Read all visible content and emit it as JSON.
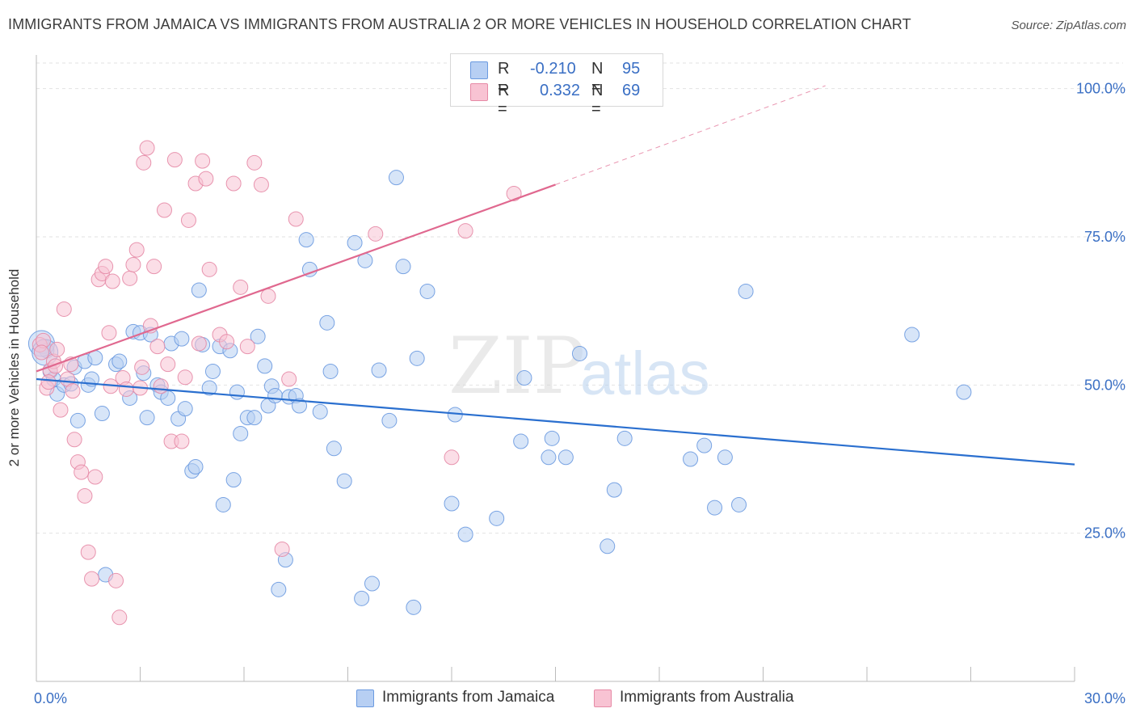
{
  "title": "IMMIGRANTS FROM JAMAICA VS IMMIGRANTS FROM AUSTRALIA 2 OR MORE VEHICLES IN HOUSEHOLD CORRELATION CHART",
  "source": "Source: ZipAtlas.com",
  "watermark": {
    "zip": "ZIP",
    "atlas": "atlas"
  },
  "legend": {
    "series": [
      {
        "r_label": "R =",
        "r_value": "-0.210",
        "n_label": "N =",
        "n_value": "95"
      },
      {
        "r_label": "R =",
        "r_value": "0.332",
        "n_label": "N =",
        "n_value": "69"
      }
    ]
  },
  "colors": {
    "jamaica_fill": "#b7cff3",
    "jamaica_stroke": "#6b9ae0",
    "jamaica_line": "#2a6fcf",
    "australia_fill": "#f8c3d3",
    "australia_stroke": "#e68aa6",
    "australia_line": "#e0688f",
    "tick_label": "#3a6fc4",
    "grid": "#e2e2e2"
  },
  "chart_data": {
    "type": "scatter",
    "title": "IMMIGRANTS FROM JAMAICA VS IMMIGRANTS FROM AUSTRALIA 2 OR MORE VEHICLES IN HOUSEHOLD CORRELATION CHART",
    "xlabel": "",
    "ylabel": "2 or more Vehicles in Household",
    "xlim": [
      0,
      30
    ],
    "ylim": [
      0,
      105
    ],
    "x_tick_labels": [
      "0.0%",
      "30.0%"
    ],
    "y_ticks": [
      25,
      50,
      75,
      100
    ],
    "y_tick_labels": [
      "25.0%",
      "50.0%",
      "75.0%",
      "100.0%"
    ],
    "grid": true,
    "legend_position": "top-center",
    "series": [
      {
        "name": "Immigrants from Jamaica",
        "r": -0.21,
        "n": 95,
        "trend": {
          "x": [
            0,
            30
          ],
          "y": [
            51.0,
            36.6
          ]
        },
        "points": [
          [
            0.2,
            56.5
          ],
          [
            0.3,
            55.8
          ],
          [
            0.4,
            52.3
          ],
          [
            0.5,
            51.0
          ],
          [
            0.6,
            48.5
          ],
          [
            0.8,
            50.0
          ],
          [
            1.1,
            53.0
          ],
          [
            1.2,
            44.0
          ],
          [
            1.4,
            54.0
          ],
          [
            1.5,
            50.0
          ],
          [
            1.6,
            51.0
          ],
          [
            1.7,
            54.6
          ],
          [
            1.9,
            45.2
          ],
          [
            2.0,
            18.0
          ],
          [
            2.3,
            53.5
          ],
          [
            2.4,
            54.0
          ],
          [
            2.7,
            47.8
          ],
          [
            2.8,
            59.0
          ],
          [
            3.0,
            58.8
          ],
          [
            3.1,
            52.0
          ],
          [
            3.2,
            44.5
          ],
          [
            3.3,
            58.5
          ],
          [
            3.5,
            50.0
          ],
          [
            3.6,
            48.8
          ],
          [
            3.8,
            47.8
          ],
          [
            3.9,
            57.0
          ],
          [
            4.1,
            44.3
          ],
          [
            4.2,
            57.8
          ],
          [
            4.3,
            46.0
          ],
          [
            4.5,
            35.5
          ],
          [
            4.6,
            36.2
          ],
          [
            4.7,
            66.0
          ],
          [
            4.8,
            56.8
          ],
          [
            5.0,
            49.5
          ],
          [
            5.1,
            52.3
          ],
          [
            5.3,
            56.5
          ],
          [
            5.4,
            29.8
          ],
          [
            5.6,
            55.8
          ],
          [
            5.7,
            34.0
          ],
          [
            5.8,
            48.8
          ],
          [
            5.9,
            41.8
          ],
          [
            6.1,
            44.5
          ],
          [
            6.3,
            44.5
          ],
          [
            6.4,
            58.2
          ],
          [
            6.6,
            53.2
          ],
          [
            6.7,
            46.5
          ],
          [
            6.8,
            49.8
          ],
          [
            6.9,
            48.2
          ],
          [
            7.0,
            15.5
          ],
          [
            7.2,
            20.5
          ],
          [
            7.3,
            48.0
          ],
          [
            7.5,
            48.2
          ],
          [
            7.6,
            46.5
          ],
          [
            7.8,
            74.5
          ],
          [
            7.9,
            69.5
          ],
          [
            8.2,
            45.5
          ],
          [
            8.4,
            60.5
          ],
          [
            8.5,
            52.3
          ],
          [
            8.6,
            39.3
          ],
          [
            8.9,
            33.8
          ],
          [
            9.2,
            74.0
          ],
          [
            9.4,
            14.0
          ],
          [
            9.5,
            71.0
          ],
          [
            9.7,
            16.5
          ],
          [
            9.9,
            52.5
          ],
          [
            10.2,
            44.0
          ],
          [
            10.4,
            85.0
          ],
          [
            10.6,
            70.0
          ],
          [
            10.9,
            12.5
          ],
          [
            11.0,
            54.5
          ],
          [
            11.3,
            65.8
          ],
          [
            12.0,
            30.0
          ],
          [
            12.1,
            45.0
          ],
          [
            12.4,
            24.8
          ],
          [
            13.3,
            27.5
          ],
          [
            14.0,
            40.5
          ],
          [
            14.1,
            51.2
          ],
          [
            14.8,
            37.8
          ],
          [
            14.9,
            41.0
          ],
          [
            15.3,
            37.8
          ],
          [
            15.7,
            55.3
          ],
          [
            16.5,
            22.8
          ],
          [
            16.7,
            32.3
          ],
          [
            17.0,
            41.0
          ],
          [
            18.9,
            37.5
          ],
          [
            19.3,
            39.8
          ],
          [
            19.6,
            29.3
          ],
          [
            19.9,
            37.8
          ],
          [
            20.3,
            29.8
          ],
          [
            20.5,
            65.8
          ],
          [
            25.3,
            58.5
          ],
          [
            26.8,
            48.8
          ],
          [
            0.15,
            57.0
          ],
          [
            0.25,
            55.5
          ],
          [
            1.0,
            50.2
          ]
        ]
      },
      {
        "name": "Immigrants from Australia",
        "r": 0.332,
        "n": 69,
        "trend": {
          "x": [
            0,
            15
          ],
          "y": [
            52.3,
            83.8
          ]
        },
        "trend_extension": {
          "x": [
            15,
            22.8
          ],
          "y": [
            83.8,
            100.5
          ]
        },
        "points": [
          [
            0.1,
            56.8
          ],
          [
            0.2,
            57.5
          ],
          [
            0.3,
            49.5
          ],
          [
            0.4,
            52.5
          ],
          [
            0.5,
            54.0
          ],
          [
            0.6,
            56.0
          ],
          [
            0.7,
            45.8
          ],
          [
            0.8,
            62.8
          ],
          [
            0.9,
            51.0
          ],
          [
            1.0,
            53.5
          ],
          [
            1.1,
            40.8
          ],
          [
            1.2,
            37.0
          ],
          [
            1.3,
            35.3
          ],
          [
            1.4,
            31.3
          ],
          [
            1.5,
            21.8
          ],
          [
            1.6,
            17.3
          ],
          [
            1.7,
            34.5
          ],
          [
            1.8,
            67.8
          ],
          [
            1.9,
            68.8
          ],
          [
            2.0,
            70.0
          ],
          [
            2.1,
            58.8
          ],
          [
            2.2,
            67.5
          ],
          [
            2.3,
            17.0
          ],
          [
            2.4,
            10.8
          ],
          [
            2.5,
            51.2
          ],
          [
            2.6,
            49.3
          ],
          [
            2.7,
            68.0
          ],
          [
            2.8,
            70.3
          ],
          [
            2.9,
            72.8
          ],
          [
            3.0,
            49.5
          ],
          [
            3.1,
            87.5
          ],
          [
            3.2,
            90.0
          ],
          [
            3.3,
            60.0
          ],
          [
            3.4,
            70.0
          ],
          [
            3.5,
            56.5
          ],
          [
            3.6,
            49.8
          ],
          [
            3.7,
            79.5
          ],
          [
            3.8,
            53.5
          ],
          [
            3.9,
            40.5
          ],
          [
            4.0,
            88.0
          ],
          [
            4.2,
            40.5
          ],
          [
            4.3,
            51.3
          ],
          [
            4.4,
            77.8
          ],
          [
            4.6,
            84.0
          ],
          [
            4.7,
            57.0
          ],
          [
            4.8,
            87.8
          ],
          [
            4.9,
            84.8
          ],
          [
            5.0,
            69.5
          ],
          [
            5.3,
            58.5
          ],
          [
            5.5,
            57.3
          ],
          [
            5.7,
            84.0
          ],
          [
            5.9,
            66.5
          ],
          [
            6.1,
            56.5
          ],
          [
            6.3,
            87.5
          ],
          [
            6.5,
            83.8
          ],
          [
            6.7,
            65.0
          ],
          [
            7.1,
            22.3
          ],
          [
            7.3,
            51.0
          ],
          [
            7.5,
            78.0
          ],
          [
            9.8,
            75.5
          ],
          [
            12.0,
            37.8
          ],
          [
            12.4,
            76.0
          ],
          [
            13.8,
            82.3
          ],
          [
            0.15,
            55.5
          ],
          [
            0.35,
            50.5
          ],
          [
            0.55,
            53.2
          ],
          [
            1.05,
            49.0
          ],
          [
            2.15,
            49.8
          ],
          [
            3.05,
            53.0
          ]
        ]
      }
    ]
  }
}
